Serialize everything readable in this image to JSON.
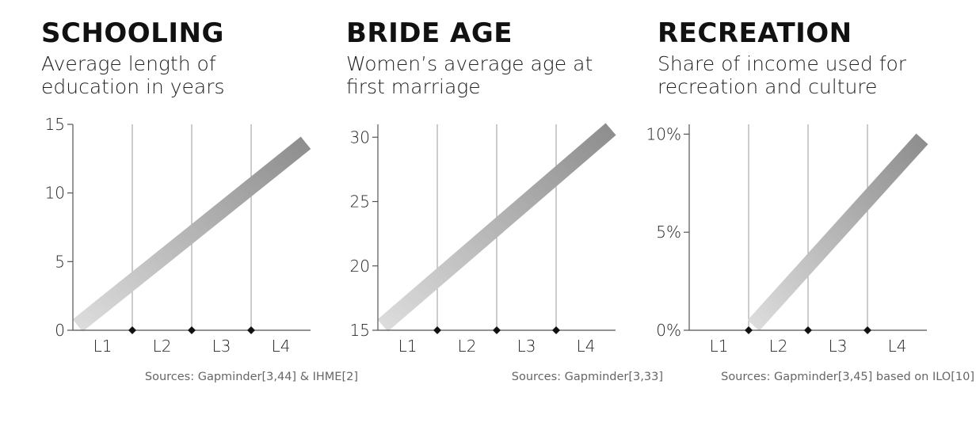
{
  "colors": {
    "band_start": "#dcdcdc",
    "band_end": "#8e8e8e",
    "axis": "#555555",
    "level_line": "#999999",
    "source_text": "#666666"
  },
  "panels": [
    {
      "title": "SCHOOLING",
      "subtitle": [
        "Average length of",
        "education in years"
      ],
      "source": "Sources: Gapminder[3,44] & IHME[2]"
    },
    {
      "title": "BRIDE AGE",
      "subtitle": [
        "Women’s average age at",
        "first marriage"
      ],
      "source": "Sources: Gapminder[3,33]"
    },
    {
      "title": "RECREATION",
      "subtitle": [
        "Share of income used for",
        "recreation and culture"
      ],
      "source": "Sources: Gapminder[3,45] based on ILO[10]"
    }
  ],
  "chart_data": [
    {
      "type": "area",
      "categories": [
        "L1",
        "L2",
        "L3",
        "L4"
      ],
      "yticks": [
        "0",
        "5",
        "10",
        "15"
      ],
      "ytick_values": [
        0,
        5,
        10,
        15
      ],
      "ylim": [
        0,
        15
      ],
      "band": {
        "x": [
          0,
          4
        ],
        "y": [
          0,
          14
        ]
      },
      "grid": false
    },
    {
      "type": "area",
      "categories": [
        "L1",
        "L2",
        "L3",
        "L4"
      ],
      "yticks": [
        "15",
        "20",
        "25",
        "30"
      ],
      "ytick_values": [
        15,
        20,
        25,
        30
      ],
      "ylim": [
        15,
        31
      ],
      "band": {
        "x": [
          0,
          4
        ],
        "y": [
          15,
          31
        ]
      },
      "grid": false
    },
    {
      "type": "area",
      "categories": [
        "L1",
        "L2",
        "L3",
        "L4"
      ],
      "yticks": [
        "0%",
        "5%",
        "10%"
      ],
      "ytick_values": [
        0,
        5,
        10
      ],
      "ylim": [
        0,
        10.5
      ],
      "band": {
        "x": [
          1,
          4
        ],
        "y": [
          0,
          10
        ]
      },
      "grid": false
    }
  ]
}
